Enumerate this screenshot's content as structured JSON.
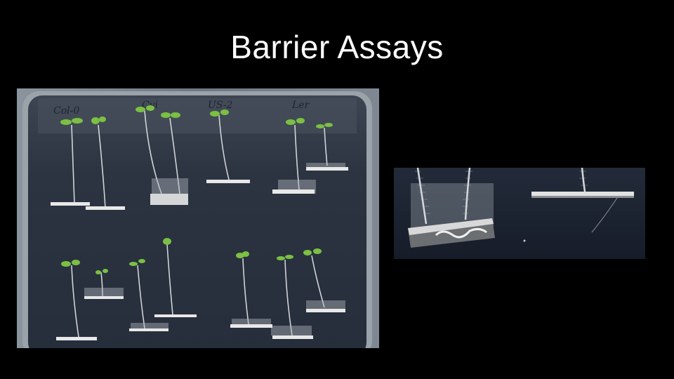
{
  "slide": {
    "title": "Barrier Assays"
  },
  "plate_photo": {
    "labels": [
      "Col-0",
      "Cvi",
      "US-2",
      "Ler"
    ],
    "colors": {
      "gel": "#2e3644",
      "frame": "#5a6470",
      "seedling_leaf": "#7bc043",
      "barrier": "#e8e8e8"
    }
  },
  "closeup_photo": {
    "colors": {
      "background": "#1c2333",
      "barrier": "#d8d8d8"
    }
  }
}
